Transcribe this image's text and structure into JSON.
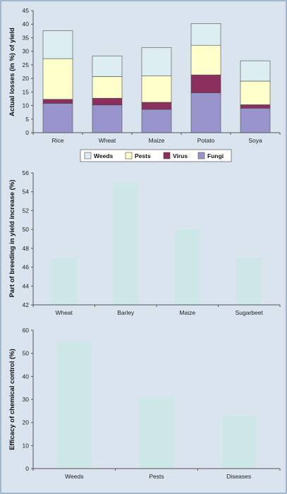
{
  "colors": {
    "weeds": "#ddeef2",
    "pests": "#ffffcc",
    "virus": "#8b2f5e",
    "fungi": "#9a94cc",
    "bar": "#cde7e9",
    "bar_stroke": "#4a4a4a"
  },
  "chart_data": [
    {
      "type": "bar",
      "stacked": true,
      "categories": [
        "Rice",
        "Wheat",
        "Maize",
        "Potato",
        "Soya"
      ],
      "series": [
        {
          "name": "Fungi",
          "values": [
            10.8,
            10.2,
            8.6,
            14.7,
            9.0
          ]
        },
        {
          "name": "Virus",
          "values": [
            1.5,
            2.5,
            2.6,
            6.6,
            1.3
          ]
        },
        {
          "name": "Pests",
          "values": [
            15.0,
            8.0,
            9.7,
            10.9,
            8.7
          ]
        },
        {
          "name": "Weeds",
          "values": [
            10.3,
            7.6,
            10.5,
            8.0,
            7.5
          ]
        }
      ],
      "legend_order": [
        "Weeds",
        "Pests",
        "Virus",
        "Fungi"
      ],
      "legend_position": "bottom",
      "ylabel": "Actual losses (in %) of yield",
      "ylim": [
        0,
        45
      ],
      "yticks": [
        0,
        5,
        10,
        15,
        20,
        25,
        30,
        35,
        40,
        45
      ],
      "grid": false
    },
    {
      "type": "bar",
      "categories": [
        "Wheat",
        "Barley",
        "Maize",
        "Sugarbeet"
      ],
      "values": [
        47,
        55,
        50,
        47
      ],
      "ylabel": "Part of breeding in yield increase (%)",
      "ylim": [
        42,
        56
      ],
      "yticks": [
        42,
        44,
        46,
        48,
        50,
        52,
        54,
        56
      ],
      "grid": false
    },
    {
      "type": "bar",
      "categories": [
        "Weeds",
        "Pests",
        "Diseases"
      ],
      "values": [
        55,
        31,
        23
      ],
      "ylabel": "Efficacy of chemical control (%)",
      "ylim": [
        0,
        60
      ],
      "yticks": [
        0,
        10,
        20,
        30,
        40,
        50,
        60
      ],
      "grid": false
    }
  ]
}
